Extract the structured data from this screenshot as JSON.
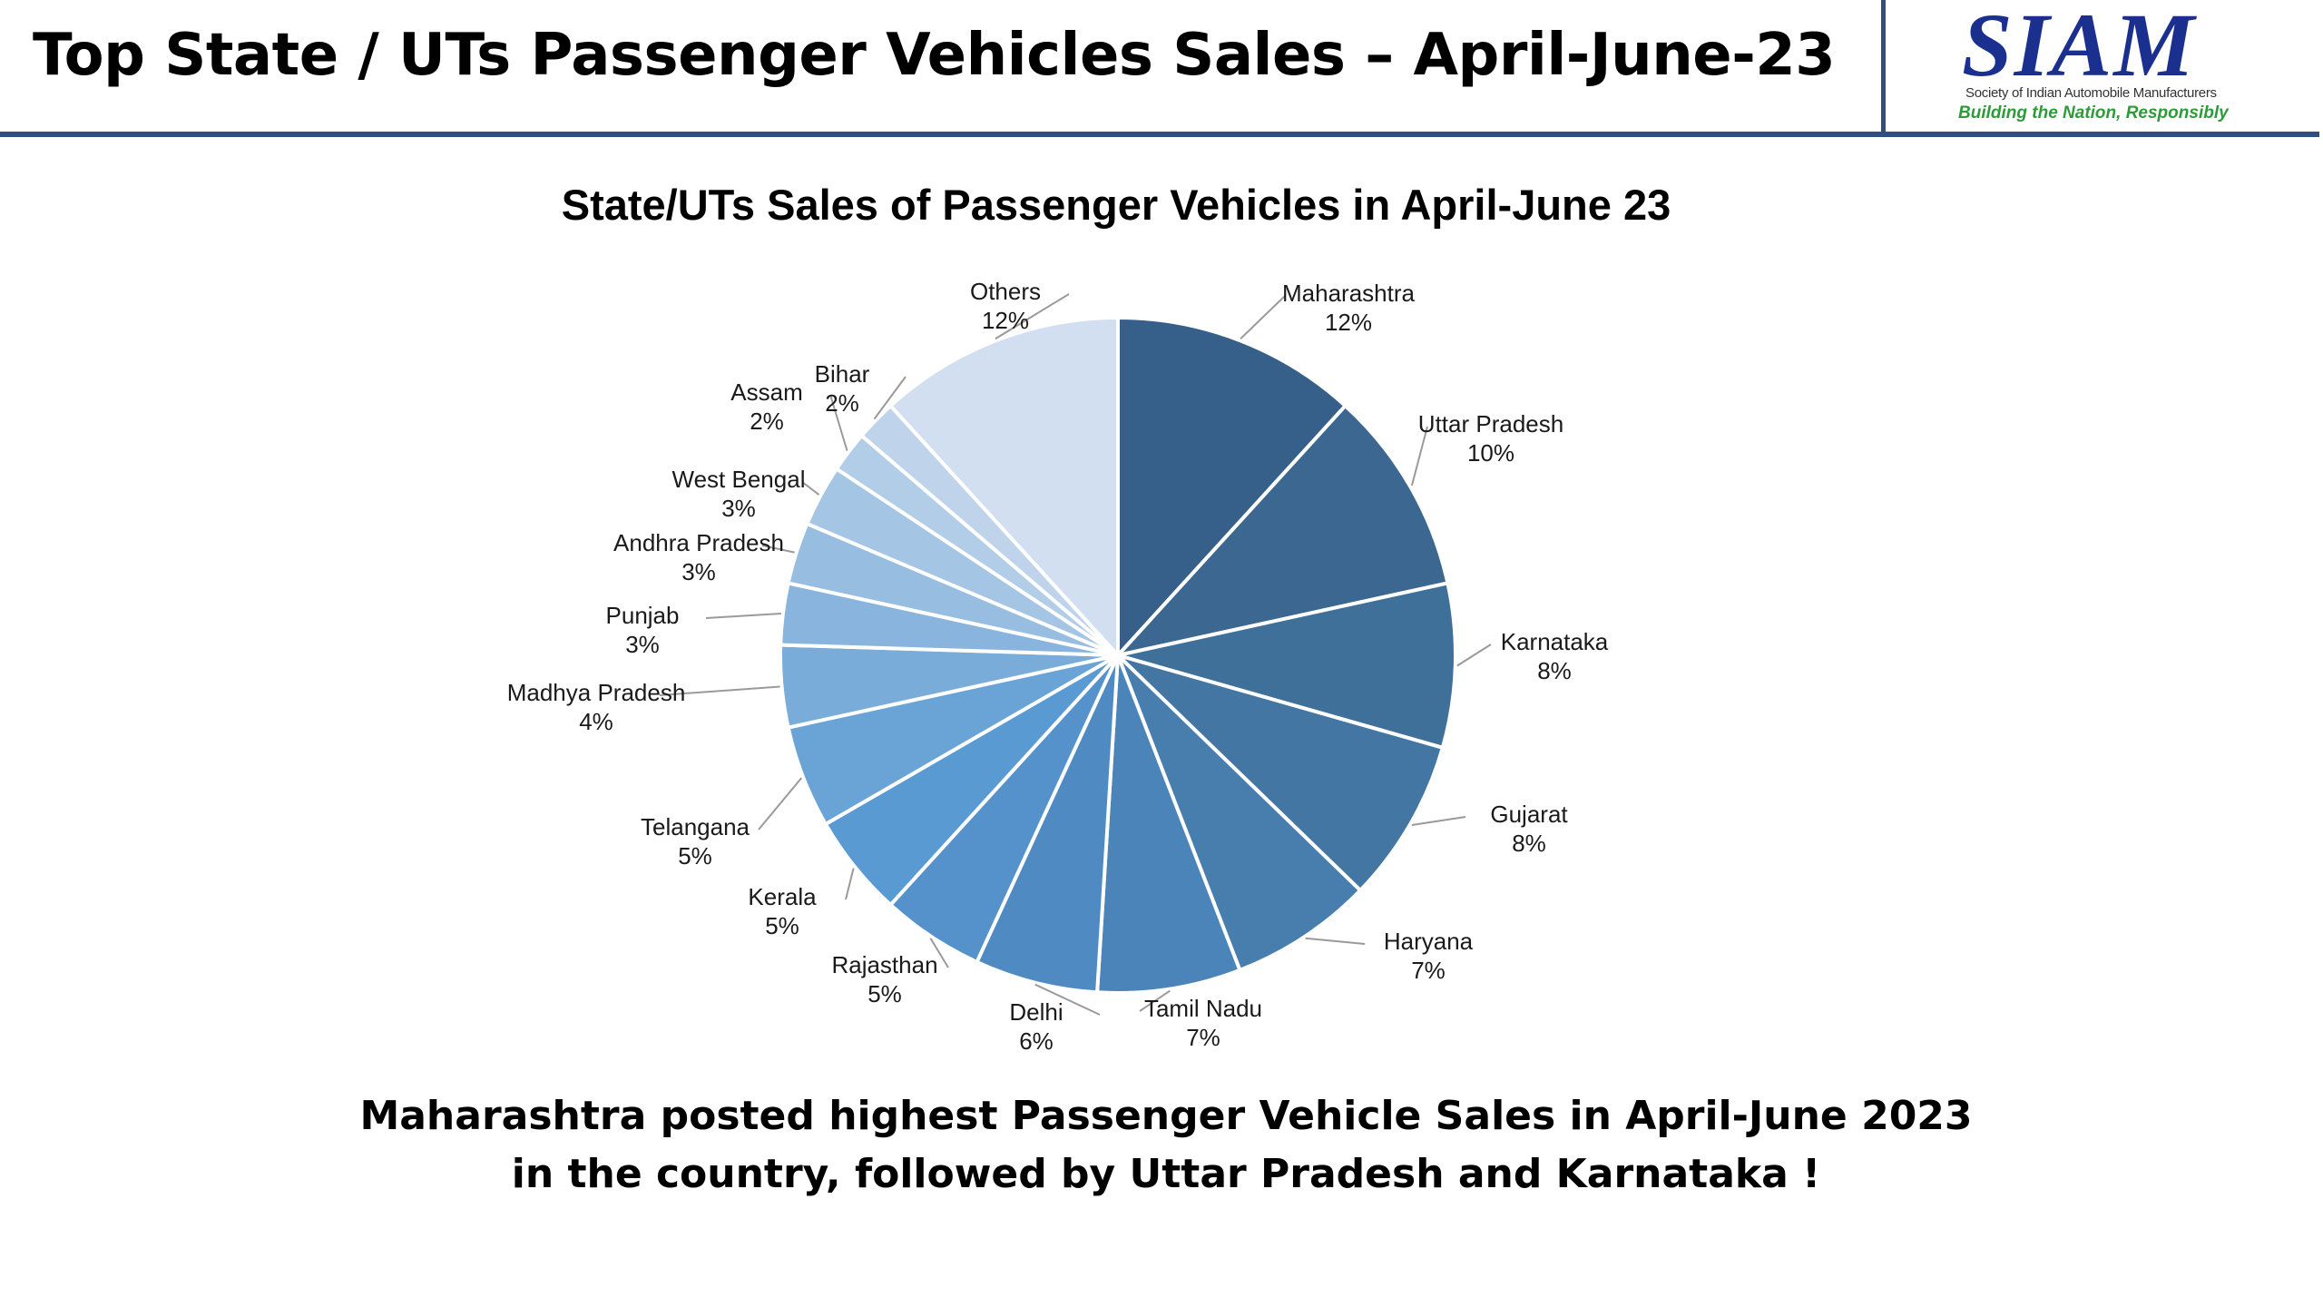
{
  "header": {
    "title": "Top State / UTs Passenger Vehicles Sales – April-June-23",
    "accent": "#2e4f7f"
  },
  "logo": {
    "wordmark": "SIAM",
    "subtitle": "Society of Indian Automobile Manufacturers",
    "tagline": "Building the Nation, Responsibly",
    "color": "#1b2f8f",
    "tagline_color": "#2f9a3a"
  },
  "chart_data": {
    "type": "pie",
    "title": "State/UTs Sales of Passenger Vehicles in April-June 23",
    "start_angle": "12 o'clock",
    "direction": "clockwise",
    "slices": [
      {
        "label": "Maharashtra",
        "value": 12,
        "display": "12%",
        "color": "#365f8a"
      },
      {
        "label": "Uttar Pradesh",
        "value": 10,
        "display": "10%",
        "color": "#3b6791"
      },
      {
        "label": "Karnataka",
        "value": 8,
        "display": "8%",
        "color": "#3f7099"
      },
      {
        "label": "Gujarat",
        "value": 8,
        "display": "8%",
        "color": "#4376a3"
      },
      {
        "label": "Haryana",
        "value": 7,
        "display": "7%",
        "color": "#477eae"
      },
      {
        "label": "Tamil Nadu",
        "value": 7,
        "display": "7%",
        "color": "#4b84b8"
      },
      {
        "label": "Delhi",
        "value": 6,
        "display": "6%",
        "color": "#4f8bc2"
      },
      {
        "label": "Rajasthan",
        "value": 5,
        "display": "5%",
        "color": "#5592cb"
      },
      {
        "label": "Kerala",
        "value": 5,
        "display": "5%",
        "color": "#5a9ad3"
      },
      {
        "label": "Telangana",
        "value": 5,
        "display": "5%",
        "color": "#6aa3d6"
      },
      {
        "label": "Madhya Pradesh",
        "value": 4,
        "display": "4%",
        "color": "#7aacd9"
      },
      {
        "label": "Punjab",
        "value": 3,
        "display": "3%",
        "color": "#89b4dd"
      },
      {
        "label": "Andhra Pradesh",
        "value": 3,
        "display": "3%",
        "color": "#97bde1"
      },
      {
        "label": "West Bengal",
        "value": 3,
        "display": "3%",
        "color": "#a5c5e5"
      },
      {
        "label": "Assam",
        "value": 2,
        "display": "2%",
        "color": "#b2cde8"
      },
      {
        "label": "Bihar",
        "value": 2,
        "display": "2%",
        "color": "#bfd4eb"
      },
      {
        "label": "Others",
        "value": 12,
        "display": "12%",
        "color": "#d2dff0"
      }
    ]
  },
  "caption": {
    "line1": "Maharashtra posted highest Passenger Vehicle Sales in April-June 2023",
    "line2": "in the country, followed by Uttar Pradesh and Karnataka !"
  }
}
